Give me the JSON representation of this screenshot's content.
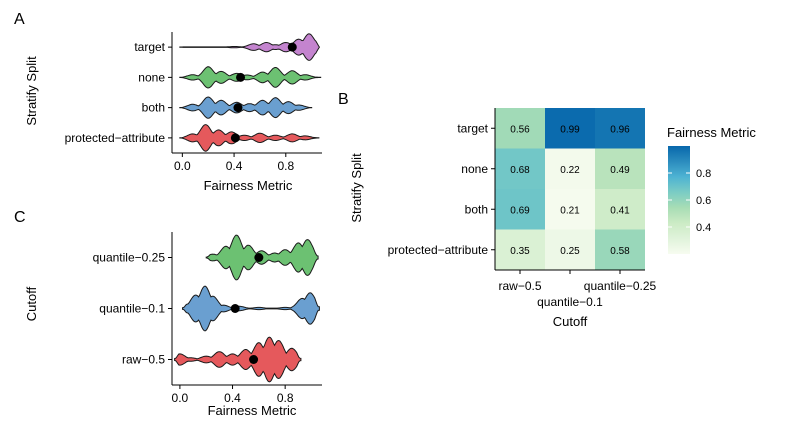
{
  "colors": {
    "red": "#e5595c",
    "blue": "#6a9fd0",
    "green": "#6cc172",
    "purple": "#c484cf",
    "mean_dot": "#000000",
    "violin_stroke": "#1a1a1a"
  },
  "panels": {
    "a_letter": "A",
    "b_letter": "B",
    "c_letter": "C"
  },
  "chart_data": [
    {
      "id": "A",
      "type": "violin",
      "orientation": "horizontal",
      "xlabel": "Fairness Metric",
      "ylabel": "Stratify Split",
      "xlim": [
        -0.08,
        1.08
      ],
      "xticks": [
        0.0,
        0.4,
        0.8
      ],
      "xtick_labels": [
        "0.0",
        "0.4",
        "0.8"
      ],
      "categories": [
        "target",
        "none",
        "both",
        "protected−attribute"
      ],
      "series": [
        {
          "category": "target",
          "color": "purple",
          "mean": 0.85,
          "range": [
            -0.02,
            1.06
          ],
          "density": [
            [
              0.4,
              0.05
            ],
            [
              0.55,
              0.25
            ],
            [
              0.65,
              0.35
            ],
            [
              0.72,
              0.18
            ],
            [
              0.8,
              0.35
            ],
            [
              0.9,
              0.6
            ],
            [
              0.98,
              1.0
            ],
            [
              1.03,
              0.5
            ]
          ]
        },
        {
          "category": "none",
          "color": "green",
          "mean": 0.45,
          "range": [
            -0.02,
            1.07
          ],
          "density": [
            [
              0.08,
              0.2
            ],
            [
              0.2,
              0.8
            ],
            [
              0.3,
              0.45
            ],
            [
              0.42,
              0.3
            ],
            [
              0.5,
              0.18
            ],
            [
              0.62,
              0.4
            ],
            [
              0.72,
              0.75
            ],
            [
              0.85,
              0.5
            ],
            [
              0.95,
              0.2
            ]
          ]
        },
        {
          "category": "both",
          "color": "blue",
          "mean": 0.43,
          "range": [
            -0.02,
            1.0
          ],
          "density": [
            [
              0.08,
              0.25
            ],
            [
              0.2,
              0.8
            ],
            [
              0.3,
              0.55
            ],
            [
              0.42,
              0.4
            ],
            [
              0.52,
              0.3
            ],
            [
              0.62,
              0.55
            ],
            [
              0.72,
              0.75
            ],
            [
              0.82,
              0.45
            ],
            [
              0.9,
              0.2
            ]
          ]
        },
        {
          "category": "protected−attribute",
          "color": "red",
          "mean": 0.41,
          "range": [
            -0.02,
            1.06
          ],
          "density": [
            [
              0.08,
              0.3
            ],
            [
              0.18,
              1.0
            ],
            [
              0.28,
              0.6
            ],
            [
              0.38,
              0.45
            ],
            [
              0.48,
              0.2
            ],
            [
              0.6,
              0.35
            ],
            [
              0.72,
              0.2
            ],
            [
              0.85,
              0.3
            ],
            [
              0.95,
              0.15
            ]
          ]
        }
      ]
    },
    {
      "id": "B",
      "type": "heatmap",
      "xlabel": "Cutoff",
      "ylabel": "Stratify Split",
      "x": [
        "raw−0.5",
        "quantile−0.1",
        "quantile−0.25"
      ],
      "y": [
        "target",
        "none",
        "both",
        "protected−attribute"
      ],
      "values": [
        [
          0.56,
          0.99,
          0.96
        ],
        [
          0.68,
          0.22,
          0.49
        ],
        [
          0.69,
          0.21,
          0.41
        ],
        [
          0.35,
          0.25,
          0.58
        ]
      ],
      "legend": {
        "title": "Fairness Metric",
        "placement": "right",
        "ticks": [
          0.4,
          0.6,
          0.8
        ],
        "tick_labels": [
          "0.4",
          "0.6",
          "0.8"
        ],
        "range": [
          0.2,
          1.0
        ],
        "palette": [
          "#f7fcf0",
          "#e0f3db",
          "#ccebc5",
          "#a8ddb5",
          "#7bccc4",
          "#4eb3d3",
          "#2b8cbe",
          "#0868ac"
        ]
      }
    },
    {
      "id": "C",
      "type": "violin",
      "orientation": "horizontal",
      "xlabel": "Fairness Metric",
      "ylabel": "Cutoff",
      "xlim": [
        -0.06,
        1.08
      ],
      "xticks": [
        0.0,
        0.4,
        0.8
      ],
      "xtick_labels": [
        "0.0",
        "0.4",
        "0.8"
      ],
      "categories": [
        "quantile−0.25",
        "quantile−0.1",
        "raw−0.5"
      ],
      "series": [
        {
          "category": "quantile−0.25",
          "color": "green",
          "mean": 0.6,
          "range": [
            0.2,
            1.05
          ],
          "density": [
            [
              0.25,
              0.15
            ],
            [
              0.35,
              0.5
            ],
            [
              0.43,
              1.0
            ],
            [
              0.52,
              0.55
            ],
            [
              0.62,
              0.3
            ],
            [
              0.72,
              0.2
            ],
            [
              0.8,
              0.35
            ],
            [
              0.9,
              0.65
            ],
            [
              0.97,
              0.8
            ],
            [
              1.02,
              0.3
            ]
          ]
        },
        {
          "category": "quantile−0.1",
          "color": "blue",
          "mean": 0.42,
          "range": [
            0.02,
            1.06
          ],
          "density": [
            [
              0.06,
              0.2
            ],
            [
              0.12,
              0.6
            ],
            [
              0.19,
              1.0
            ],
            [
              0.25,
              0.55
            ],
            [
              0.33,
              0.15
            ],
            [
              0.45,
              0.1
            ],
            [
              0.6,
              0.05
            ],
            [
              0.8,
              0.05
            ],
            [
              0.93,
              0.45
            ],
            [
              0.99,
              0.7
            ],
            [
              1.04,
              0.3
            ]
          ]
        },
        {
          "category": "raw−0.5",
          "color": "red",
          "mean": 0.56,
          "range": [
            -0.04,
            0.92
          ],
          "density": [
            [
              0.0,
              0.25
            ],
            [
              0.08,
              0.08
            ],
            [
              0.2,
              0.15
            ],
            [
              0.3,
              0.35
            ],
            [
              0.4,
              0.25
            ],
            [
              0.5,
              0.45
            ],
            [
              0.6,
              0.75
            ],
            [
              0.68,
              1.0
            ],
            [
              0.75,
              0.85
            ],
            [
              0.85,
              0.5
            ],
            [
              0.9,
              0.2
            ]
          ]
        }
      ]
    }
  ]
}
